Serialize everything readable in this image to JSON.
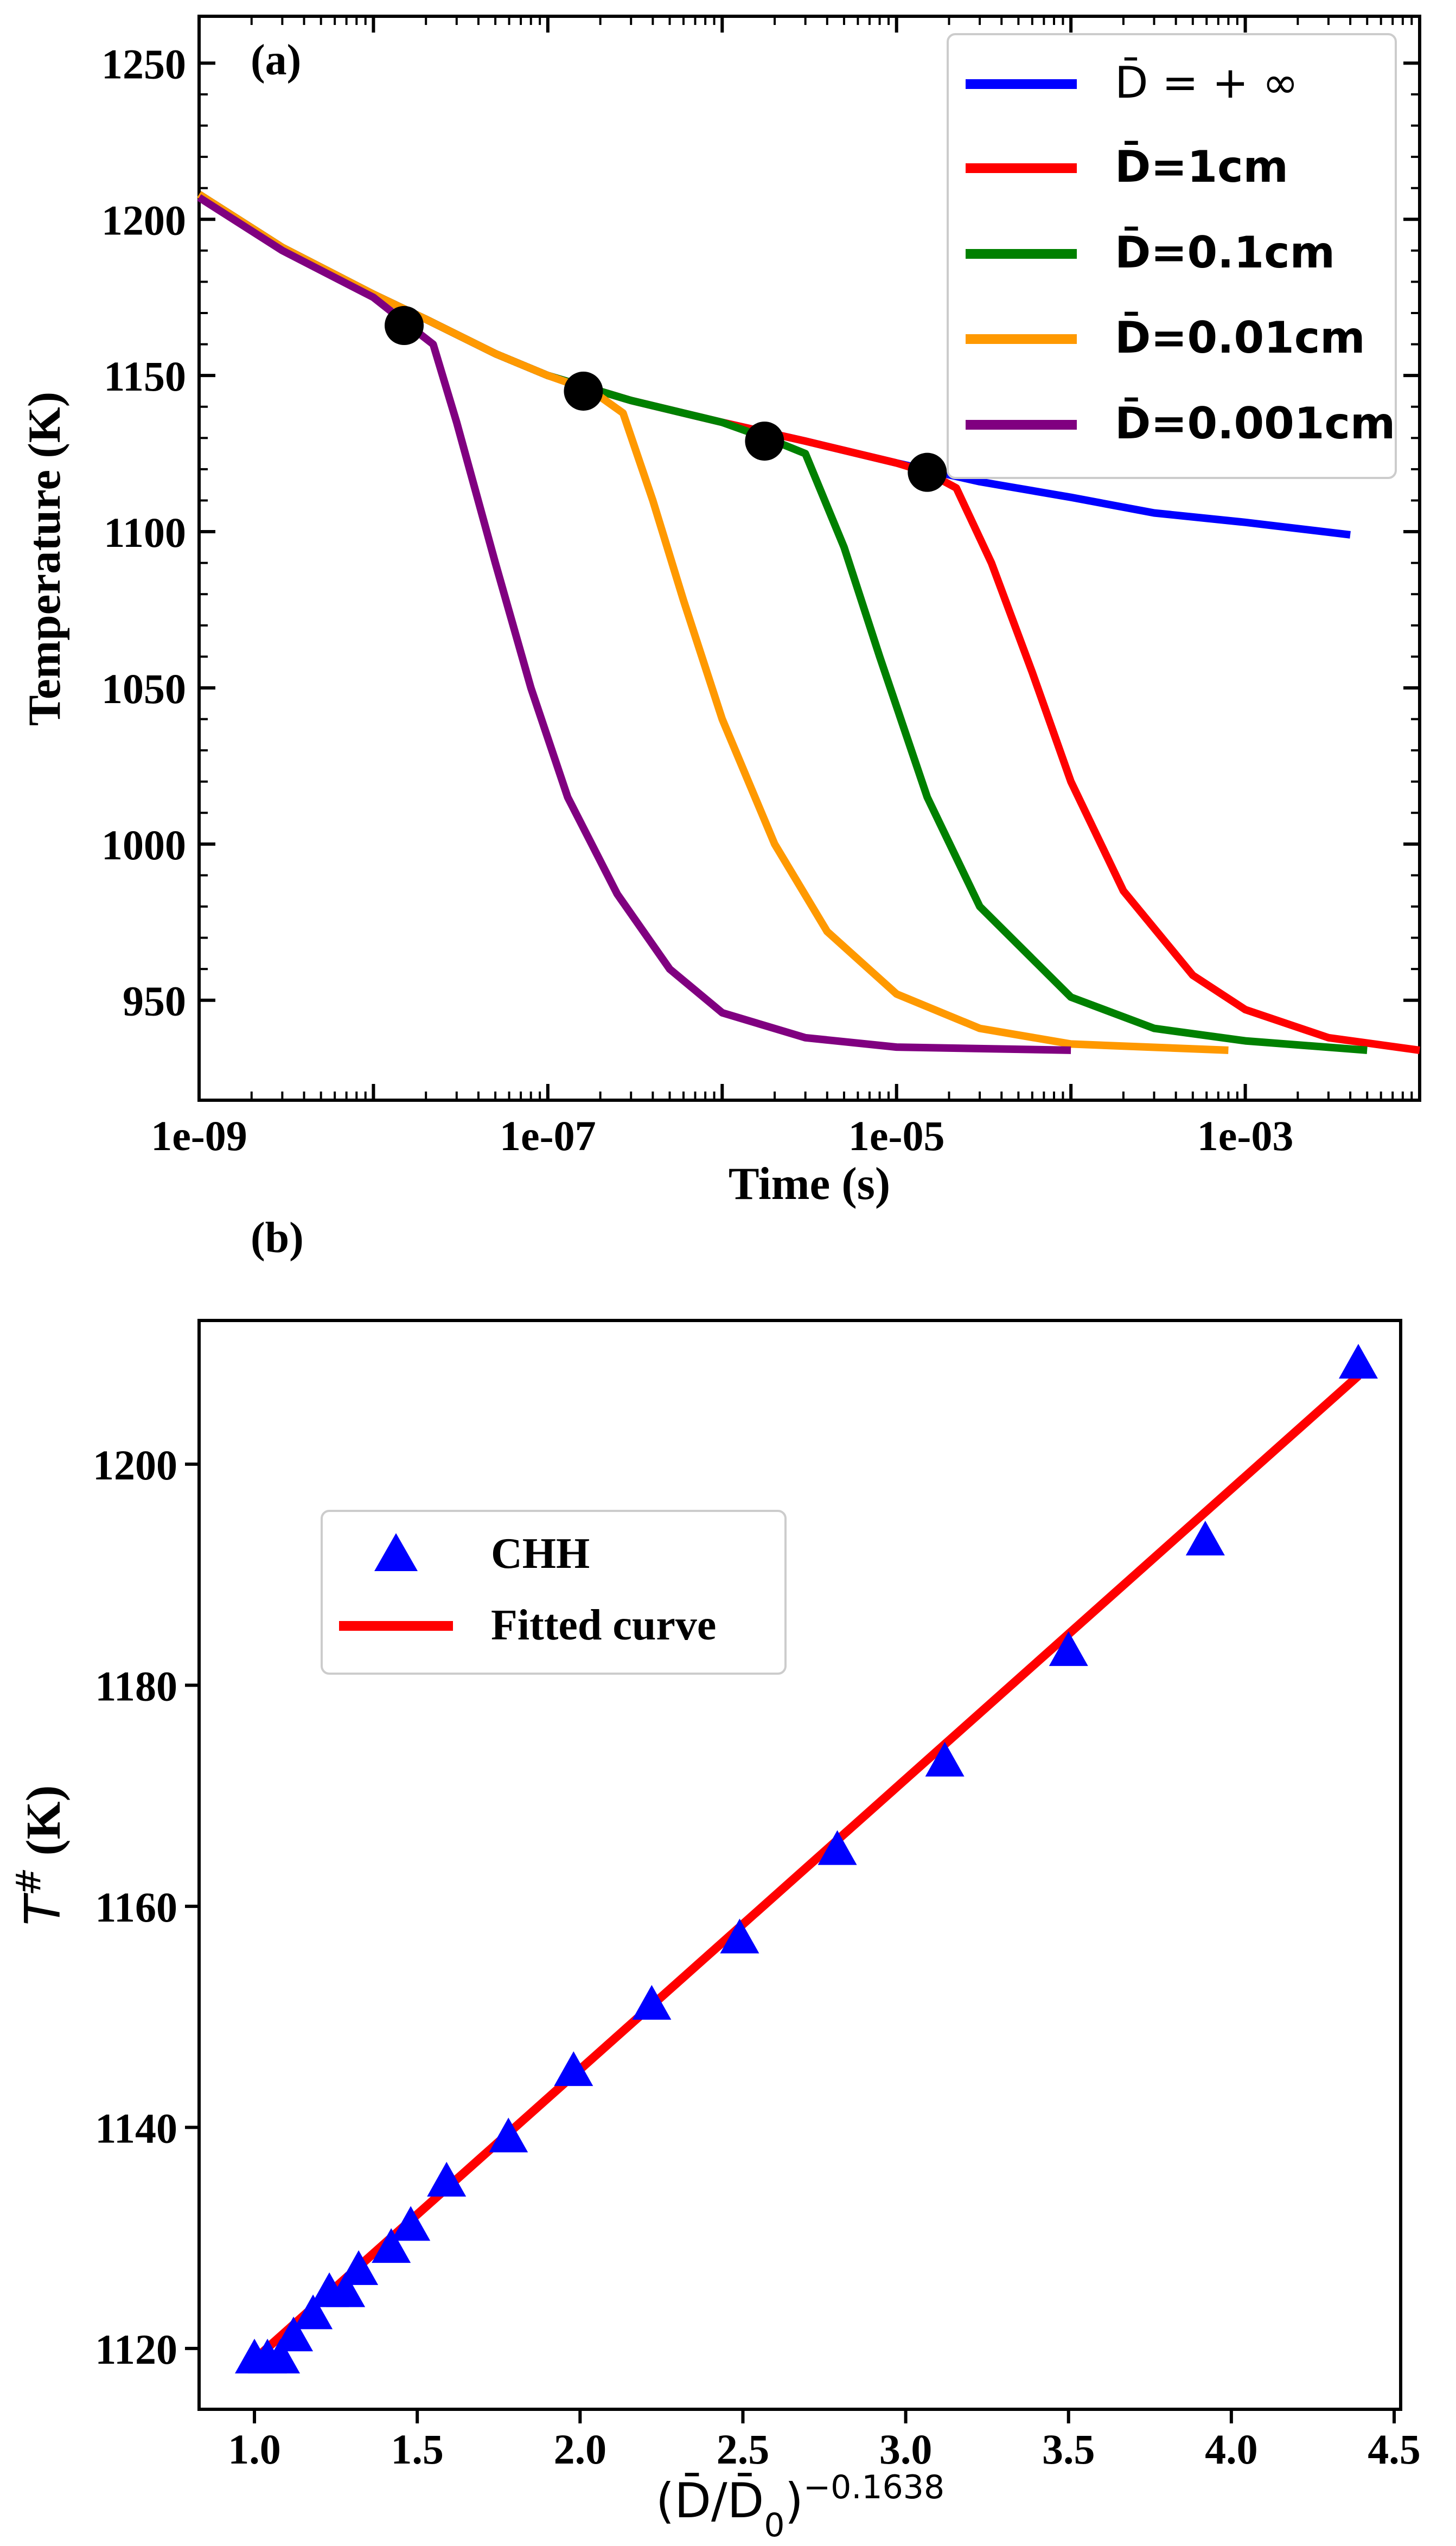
{
  "chart_data": [
    {
      "type": "line",
      "panel_label": "(a)",
      "xlabel": "Time (s)",
      "ylabel": "Temperature (K)",
      "xscale": "log",
      "xlim": [
        1e-09,
        0.01
      ],
      "ylim": [
        918,
        1265
      ],
      "xticks": [
        1e-09,
        1e-07,
        1e-05,
        0.001
      ],
      "xtick_labels": [
        "1e-09",
        "1e-07",
        "1e-05",
        "1e-03"
      ],
      "yticks": [
        950,
        1000,
        1050,
        1100,
        1150,
        1200,
        1250
      ],
      "ytick_labels": [
        "950",
        "1000",
        "1050",
        "1100",
        "1150",
        "1200",
        "1250"
      ],
      "legend_position": "top-right",
      "series": [
        {
          "name": "D̄ = + ∞",
          "color": "#0000ff",
          "points": [
            [
              1e-09,
              1208
            ],
            [
              3e-09,
              1191
            ],
            [
              1e-08,
              1176
            ],
            [
              2e-08,
              1168
            ],
            [
              5e-08,
              1157
            ],
            [
              1e-07,
              1150
            ],
            [
              3e-07,
              1142
            ],
            [
              1e-06,
              1135
            ],
            [
              3e-06,
              1129
            ],
            [
              1e-05,
              1122
            ],
            [
              3e-05,
              1116
            ],
            [
              0.0001,
              1111
            ],
            [
              0.0003,
              1106
            ],
            [
              0.001,
              1103
            ],
            [
              0.004,
              1099
            ]
          ]
        },
        {
          "name": "D̄=1cm",
          "color": "#ff0000",
          "points": [
            [
              1e-09,
              1208
            ],
            [
              3e-09,
              1191
            ],
            [
              1e-08,
              1176
            ],
            [
              2e-08,
              1168
            ],
            [
              5e-08,
              1157
            ],
            [
              1e-07,
              1150
            ],
            [
              3e-07,
              1142
            ],
            [
              1e-06,
              1135
            ],
            [
              3e-06,
              1129
            ],
            [
              1e-05,
              1122
            ],
            [
              1.5e-05,
              1119
            ],
            [
              2.2e-05,
              1114
            ],
            [
              3.5e-05,
              1090
            ],
            [
              6e-05,
              1055
            ],
            [
              0.0001,
              1020
            ],
            [
              0.0002,
              985
            ],
            [
              0.0005,
              958
            ],
            [
              0.001,
              947
            ],
            [
              0.003,
              938
            ],
            [
              0.01,
              934
            ]
          ]
        },
        {
          "name": "D̄=0.1cm",
          "color": "#008000",
          "points": [
            [
              1e-09,
              1208
            ],
            [
              3e-09,
              1191
            ],
            [
              1e-08,
              1176
            ],
            [
              2e-08,
              1168
            ],
            [
              5e-08,
              1157
            ],
            [
              1e-07,
              1150
            ],
            [
              3e-07,
              1142
            ],
            [
              1e-06,
              1135
            ],
            [
              2e-06,
              1129
            ],
            [
              3e-06,
              1125
            ],
            [
              5e-06,
              1095
            ],
            [
              8e-06,
              1060
            ],
            [
              1.5e-05,
              1015
            ],
            [
              3e-05,
              980
            ],
            [
              0.0001,
              951
            ],
            [
              0.0003,
              941
            ],
            [
              0.001,
              937
            ],
            [
              0.005,
              934
            ]
          ]
        },
        {
          "name": "D̄=0.01cm",
          "color": "#ff9900",
          "points": [
            [
              1e-09,
              1208
            ],
            [
              3e-09,
              1191
            ],
            [
              1e-08,
              1176
            ],
            [
              2e-08,
              1168
            ],
            [
              5e-08,
              1157
            ],
            [
              1e-07,
              1150
            ],
            [
              1.8e-07,
              1145
            ],
            [
              2.7e-07,
              1138
            ],
            [
              4e-07,
              1110
            ],
            [
              6e-07,
              1078
            ],
            [
              1e-06,
              1040
            ],
            [
              2e-06,
              1000
            ],
            [
              4e-06,
              972
            ],
            [
              1e-05,
              952
            ],
            [
              3e-05,
              941
            ],
            [
              0.0001,
              936
            ],
            [
              0.0008,
              934
            ]
          ]
        },
        {
          "name": "D̄=0.001cm",
          "color": "#800080",
          "points": [
            [
              1e-09,
              1207
            ],
            [
              3e-09,
              1190
            ],
            [
              1e-08,
              1175
            ],
            [
              1.6e-08,
              1166
            ],
            [
              2.2e-08,
              1160
            ],
            [
              3e-08,
              1135
            ],
            [
              5e-08,
              1090
            ],
            [
              8e-08,
              1050
            ],
            [
              1.3e-07,
              1015
            ],
            [
              2.5e-07,
              984
            ],
            [
              5e-07,
              960
            ],
            [
              1e-06,
              946
            ],
            [
              3e-06,
              938
            ],
            [
              1e-05,
              935
            ],
            [
              0.0001,
              934
            ]
          ]
        }
      ],
      "markers": [
        {
          "x": 1.5e-08,
          "y": 1166
        },
        {
          "x": 1.6e-07,
          "y": 1145
        },
        {
          "x": 1.75e-06,
          "y": 1129
        },
        {
          "x": 1.5e-05,
          "y": 1119
        }
      ]
    },
    {
      "type": "scatter",
      "panel_label": "(b)",
      "xlabel": "(D̄/D̄",
      "xlabel_sub": "0",
      "xlabel_close": ")",
      "xlabel_sup": "−0.1638",
      "ylabel": "T",
      "ylabel_sup": "#",
      "ylabel_unit": "(K)",
      "xlim": [
        0.83,
        4.52
      ],
      "ylim": [
        1114.5,
        1213
      ],
      "xticks": [
        1.0,
        1.5,
        2.0,
        2.5,
        3.0,
        3.5,
        4.0,
        4.5
      ],
      "xtick_labels": [
        "1.0",
        "1.5",
        "2.0",
        "2.5",
        "3.0",
        "3.5",
        "4.0",
        "4.5"
      ],
      "yticks": [
        1120,
        1140,
        1160,
        1180,
        1200
      ],
      "ytick_labels": [
        "1120",
        "1140",
        "1160",
        "1180",
        "1200"
      ],
      "legend_position": "upper-left",
      "series": [
        {
          "name": "CHH",
          "kind": "scatter",
          "marker": "triangle",
          "color": "#0000ff",
          "points": [
            [
              1.0,
              1119
            ],
            [
              1.04,
              1119
            ],
            [
              1.08,
              1119
            ],
            [
              1.12,
              1121
            ],
            [
              1.18,
              1123
            ],
            [
              1.23,
              1125
            ],
            [
              1.28,
              1125
            ],
            [
              1.32,
              1127
            ],
            [
              1.42,
              1129
            ],
            [
              1.48,
              1131
            ],
            [
              1.59,
              1135
            ],
            [
              1.78,
              1139
            ],
            [
              1.98,
              1145
            ],
            [
              2.22,
              1151
            ],
            [
              2.49,
              1157
            ],
            [
              2.79,
              1165
            ],
            [
              3.12,
              1173
            ],
            [
              3.5,
              1183
            ],
            [
              3.92,
              1193
            ],
            [
              4.39,
              1209
            ]
          ]
        },
        {
          "name": "Fitted curve",
          "kind": "line",
          "color": "#ff0000",
          "points": [
            [
              1.0,
              1119
            ],
            [
              4.39,
              1208
            ]
          ]
        }
      ]
    }
  ]
}
